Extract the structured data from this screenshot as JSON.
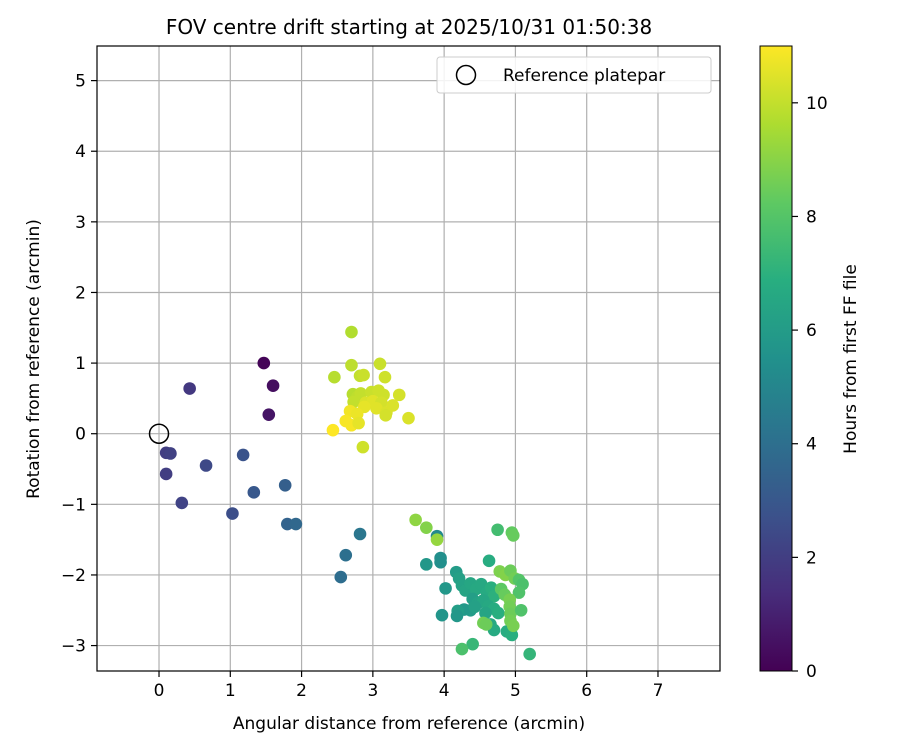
{
  "chart_data": {
    "type": "scatter",
    "title": "FOV centre drift starting at 2025/10/31 01:50:38",
    "xlabel": "Angular distance from reference (arcmin)",
    "ylabel": "Rotation from reference (arcmin)",
    "xlim": [
      -0.87,
      7.87
    ],
    "ylim": [
      -3.36,
      5.49
    ],
    "xticks": [
      0,
      1,
      2,
      3,
      4,
      5,
      6,
      7
    ],
    "yticks": [
      -3,
      -2,
      -1,
      0,
      1,
      2,
      3,
      4,
      5
    ],
    "grid": true,
    "legend": {
      "position": "top-right",
      "entries": [
        "Reference platepar"
      ]
    },
    "reference_point": {
      "label": "Reference platepar",
      "x": 0,
      "y": 0
    },
    "colorbar": {
      "label": "Hours from first FF file",
      "colormap": "viridis",
      "range": [
        0,
        11
      ],
      "ticks": [
        0,
        2,
        4,
        6,
        8,
        10
      ]
    },
    "points": [
      {
        "x": 1.47,
        "y": 1.0,
        "h": 0.1
      },
      {
        "x": 1.6,
        "y": 0.68,
        "h": 0.4
      },
      {
        "x": 1.54,
        "y": 0.27,
        "h": 0.6
      },
      {
        "x": 0.43,
        "y": 0.64,
        "h": 1.8
      },
      {
        "x": 0.1,
        "y": -0.27,
        "h": 2.0
      },
      {
        "x": 0.16,
        "y": -0.28,
        "h": 2.1
      },
      {
        "x": 0.1,
        "y": -0.57,
        "h": 2.0
      },
      {
        "x": 0.32,
        "y": -0.98,
        "h": 2.2
      },
      {
        "x": 0.66,
        "y": -0.45,
        "h": 2.4
      },
      {
        "x": 1.03,
        "y": -1.13,
        "h": 2.6
      },
      {
        "x": 1.18,
        "y": -0.3,
        "h": 2.8
      },
      {
        "x": 1.33,
        "y": -0.83,
        "h": 3.0
      },
      {
        "x": 1.77,
        "y": -0.73,
        "h": 3.3
      },
      {
        "x": 1.8,
        "y": -1.28,
        "h": 3.5
      },
      {
        "x": 1.92,
        "y": -1.28,
        "h": 3.7
      },
      {
        "x": 2.82,
        "y": -1.42,
        "h": 4.3
      },
      {
        "x": 2.62,
        "y": -1.72,
        "h": 4.0
      },
      {
        "x": 2.55,
        "y": -2.03,
        "h": 3.9
      },
      {
        "x": 3.9,
        "y": -1.45,
        "h": 5.2
      },
      {
        "x": 3.95,
        "y": -1.76,
        "h": 5.4
      },
      {
        "x": 3.95,
        "y": -1.82,
        "h": 5.4
      },
      {
        "x": 3.75,
        "y": -1.85,
        "h": 5.8
      },
      {
        "x": 4.02,
        "y": -2.19,
        "h": 5.8
      },
      {
        "x": 3.97,
        "y": -2.57,
        "h": 5.7
      },
      {
        "x": 4.17,
        "y": -1.96,
        "h": 6.0
      },
      {
        "x": 4.21,
        "y": -2.05,
        "h": 6.2
      },
      {
        "x": 4.25,
        "y": -2.15,
        "h": 6.3
      },
      {
        "x": 4.3,
        "y": -2.22,
        "h": 6.4
      },
      {
        "x": 4.37,
        "y": -2.12,
        "h": 6.5
      },
      {
        "x": 4.45,
        "y": -2.2,
        "h": 6.6
      },
      {
        "x": 4.52,
        "y": -2.13,
        "h": 6.6
      },
      {
        "x": 4.6,
        "y": -2.25,
        "h": 6.7
      },
      {
        "x": 4.63,
        "y": -1.8,
        "h": 6.8
      },
      {
        "x": 4.66,
        "y": -2.18,
        "h": 6.9
      },
      {
        "x": 4.7,
        "y": -2.3,
        "h": 7.0
      },
      {
        "x": 4.4,
        "y": -2.34,
        "h": 6.1
      },
      {
        "x": 4.47,
        "y": -2.4,
        "h": 6.3
      },
      {
        "x": 4.55,
        "y": -2.36,
        "h": 6.5
      },
      {
        "x": 4.62,
        "y": -2.44,
        "h": 6.6
      },
      {
        "x": 4.7,
        "y": -2.48,
        "h": 6.8
      },
      {
        "x": 4.76,
        "y": -2.54,
        "h": 6.9
      },
      {
        "x": 4.37,
        "y": -2.5,
        "h": 6.0
      },
      {
        "x": 4.28,
        "y": -2.49,
        "h": 5.9
      },
      {
        "x": 4.19,
        "y": -2.51,
        "h": 6.1
      },
      {
        "x": 4.18,
        "y": -2.58,
        "h": 5.8
      },
      {
        "x": 4.43,
        "y": -2.45,
        "h": 6.2
      },
      {
        "x": 4.58,
        "y": -2.54,
        "h": 6.4
      },
      {
        "x": 4.65,
        "y": -2.7,
        "h": 6.6
      },
      {
        "x": 4.7,
        "y": -2.78,
        "h": 6.7
      },
      {
        "x": 4.88,
        "y": -2.8,
        "h": 6.8
      },
      {
        "x": 4.95,
        "y": -2.85,
        "h": 6.9
      },
      {
        "x": 5.2,
        "y": -3.12,
        "h": 7.2
      },
      {
        "x": 4.75,
        "y": -1.36,
        "h": 7.6
      },
      {
        "x": 4.78,
        "y": -1.95,
        "h": 8.8
      },
      {
        "x": 4.86,
        "y": -2.0,
        "h": 8.9
      },
      {
        "x": 4.93,
        "y": -1.94,
        "h": 8.5
      },
      {
        "x": 4.99,
        "y": -2.05,
        "h": 8.6
      },
      {
        "x": 5.05,
        "y": -2.07,
        "h": 8.0
      },
      {
        "x": 5.1,
        "y": -2.13,
        "h": 7.8
      },
      {
        "x": 5.05,
        "y": -2.25,
        "h": 7.9
      },
      {
        "x": 4.8,
        "y": -2.2,
        "h": 8.2
      },
      {
        "x": 4.85,
        "y": -2.28,
        "h": 8.4
      },
      {
        "x": 4.92,
        "y": -2.35,
        "h": 8.7
      },
      {
        "x": 4.92,
        "y": -2.45,
        "h": 8.6
      },
      {
        "x": 4.93,
        "y": -2.55,
        "h": 8.5
      },
      {
        "x": 5.08,
        "y": -2.5,
        "h": 7.9
      },
      {
        "x": 4.93,
        "y": -2.65,
        "h": 8.6
      },
      {
        "x": 4.97,
        "y": -2.72,
        "h": 8.7
      },
      {
        "x": 4.55,
        "y": -2.68,
        "h": 8.6
      },
      {
        "x": 4.59,
        "y": -2.7,
        "h": 8.5
      },
      {
        "x": 4.4,
        "y": -2.98,
        "h": 7.3
      },
      {
        "x": 4.25,
        "y": -3.05,
        "h": 7.8
      },
      {
        "x": 4.95,
        "y": -1.4,
        "h": 8.3
      },
      {
        "x": 4.97,
        "y": -1.44,
        "h": 8.4
      },
      {
        "x": 3.6,
        "y": -1.22,
        "h": 9.1
      },
      {
        "x": 3.75,
        "y": -1.33,
        "h": 8.9
      },
      {
        "x": 3.9,
        "y": -1.5,
        "h": 9.2
      },
      {
        "x": 2.7,
        "y": 1.44,
        "h": 9.7
      },
      {
        "x": 2.7,
        "y": 0.97,
        "h": 9.9
      },
      {
        "x": 3.1,
        "y": 0.99,
        "h": 10.1
      },
      {
        "x": 2.46,
        "y": 0.8,
        "h": 9.8
      },
      {
        "x": 2.82,
        "y": 0.82,
        "h": 10.0
      },
      {
        "x": 2.87,
        "y": 0.83,
        "h": 10.1
      },
      {
        "x": 3.17,
        "y": 0.8,
        "h": 10.2
      },
      {
        "x": 2.72,
        "y": 0.56,
        "h": 9.8
      },
      {
        "x": 2.78,
        "y": 0.52,
        "h": 9.9
      },
      {
        "x": 2.83,
        "y": 0.57,
        "h": 10.0
      },
      {
        "x": 2.98,
        "y": 0.59,
        "h": 10.1
      },
      {
        "x": 3.08,
        "y": 0.61,
        "h": 10.2
      },
      {
        "x": 3.15,
        "y": 0.55,
        "h": 10.2
      },
      {
        "x": 3.37,
        "y": 0.55,
        "h": 10.3
      },
      {
        "x": 2.73,
        "y": 0.45,
        "h": 10.0
      },
      {
        "x": 2.9,
        "y": 0.44,
        "h": 10.4
      },
      {
        "x": 3.0,
        "y": 0.46,
        "h": 10.5
      },
      {
        "x": 3.12,
        "y": 0.44,
        "h": 10.3
      },
      {
        "x": 3.28,
        "y": 0.4,
        "h": 10.4
      },
      {
        "x": 2.88,
        "y": 0.38,
        "h": 10.6
      },
      {
        "x": 3.05,
        "y": 0.36,
        "h": 10.5
      },
      {
        "x": 3.19,
        "y": 0.3,
        "h": 10.4
      },
      {
        "x": 3.18,
        "y": 0.26,
        "h": 10.3
      },
      {
        "x": 3.5,
        "y": 0.22,
        "h": 10.4
      },
      {
        "x": 2.68,
        "y": 0.32,
        "h": 10.8
      },
      {
        "x": 2.78,
        "y": 0.28,
        "h": 10.7
      },
      {
        "x": 2.62,
        "y": 0.18,
        "h": 10.9
      },
      {
        "x": 2.7,
        "y": 0.12,
        "h": 10.9
      },
      {
        "x": 2.8,
        "y": 0.15,
        "h": 10.6
      },
      {
        "x": 2.44,
        "y": 0.05,
        "h": 11.0
      },
      {
        "x": 2.86,
        "y": -0.19,
        "h": 10.2
      }
    ]
  }
}
